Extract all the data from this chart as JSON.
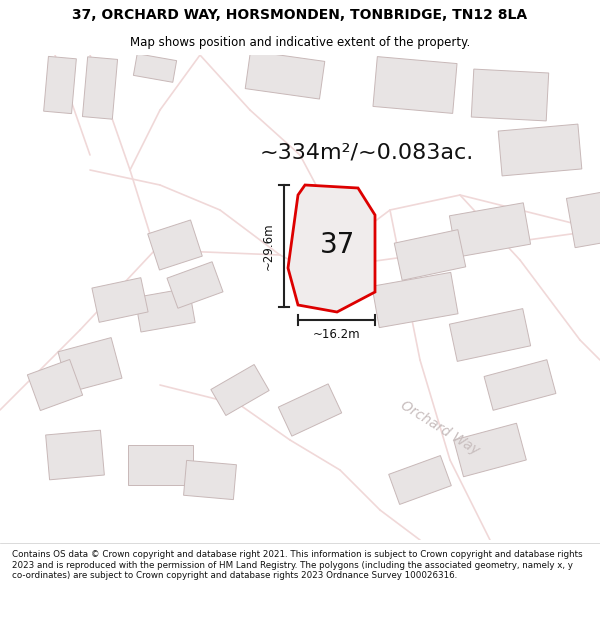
{
  "title_line1": "37, ORCHARD WAY, HORSMONDEN, TONBRIDGE, TN12 8LA",
  "title_line2": "Map shows position and indicative extent of the property.",
  "area_text": "~334m²/~0.083ac.",
  "number_label": "37",
  "dim_width": "~16.2m",
  "dim_height": "~29.6m",
  "road_label": "Orchard Way",
  "footer_text": "Contains OS data © Crown copyright and database right 2021. This information is subject to Crown copyright and database rights 2023 and is reproduced with the permission of HM Land Registry. The polygons (including the associated geometry, namely x, y co-ordinates) are subject to Crown copyright and database rights 2023 Ordnance Survey 100026316.",
  "map_bg": "#faf8f8",
  "building_fill": "#e8e4e4",
  "building_edge": "#c8b8b8",
  "road_color": "#f0d8d8",
  "plot_fill": "#f0ecec",
  "plot_edge": "#dd0000",
  "dim_line_color": "#222222",
  "title_bg": "#ffffff",
  "road_label_color": "#c8bebe"
}
